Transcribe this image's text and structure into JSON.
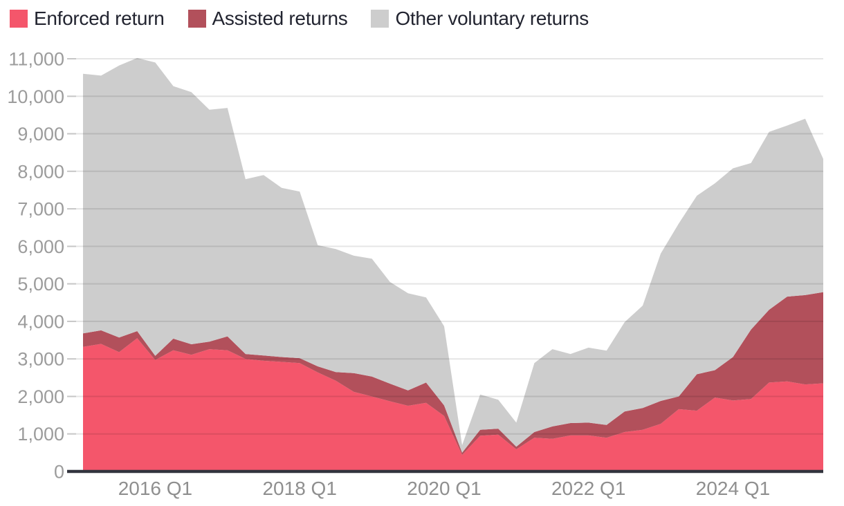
{
  "legend": {
    "items": [
      "Enforced return",
      "Assisted returns",
      "Other voluntary returns"
    ]
  },
  "colors": {
    "enforced": "#F4566B",
    "assisted": "#B2505B",
    "other": "#CDCDCD",
    "axis_line": "#32343E",
    "gridline": "#E6E6E6",
    "tick_stub": "#C6C6C6",
    "y_label": "#9C9C9C",
    "x_label": "#8F8F8F",
    "legend_text": "#222430",
    "background": "#FFFFFF"
  },
  "chart_data": {
    "type": "area",
    "stacked": true,
    "title": "",
    "xlabel": "",
    "ylabel": "",
    "grid": "horizontal",
    "legend_position": "top-left",
    "ylim": [
      0,
      11000
    ],
    "y_ticks": [
      0,
      1000,
      2000,
      3000,
      4000,
      5000,
      6000,
      7000,
      8000,
      9000,
      10000,
      11000
    ],
    "y_tick_labels": [
      "0",
      "1,000",
      "2,000",
      "3,000",
      "4,000",
      "5,000",
      "6,000",
      "7,000",
      "8,000",
      "9,000",
      "10,000",
      "11,000"
    ],
    "x_tick_labels": [
      "2016 Q1",
      "2018 Q1",
      "2020 Q1",
      "2022 Q1",
      "2024 Q1"
    ],
    "x_tick_indices": [
      4,
      12,
      20,
      28,
      36
    ],
    "categories": [
      "2015 Q1",
      "2015 Q2",
      "2015 Q3",
      "2015 Q4",
      "2016 Q1",
      "2016 Q2",
      "2016 Q3",
      "2016 Q4",
      "2017 Q1",
      "2017 Q2",
      "2017 Q3",
      "2017 Q4",
      "2018 Q1",
      "2018 Q2",
      "2018 Q3",
      "2018 Q4",
      "2019 Q1",
      "2019 Q2",
      "2019 Q3",
      "2019 Q4",
      "2020 Q1",
      "2020 Q2",
      "2020 Q3",
      "2020 Q4",
      "2021 Q1",
      "2021 Q2",
      "2021 Q3",
      "2021 Q4",
      "2022 Q1",
      "2022 Q2",
      "2022 Q3",
      "2022 Q4",
      "2023 Q1",
      "2023 Q2",
      "2023 Q3",
      "2023 Q4",
      "2024 Q1",
      "2024 Q2",
      "2024 Q3",
      "2024 Q4",
      "2025 Q1",
      "2025 Q2"
    ],
    "series": [
      {
        "name": "Enforced return",
        "color": "#F4566B",
        "values": [
          3320,
          3400,
          3180,
          3550,
          2970,
          3230,
          3110,
          3260,
          3230,
          3000,
          2950,
          2920,
          2890,
          2640,
          2420,
          2120,
          2000,
          1870,
          1750,
          1830,
          1480,
          440,
          950,
          980,
          590,
          900,
          870,
          960,
          960,
          900,
          1050,
          1110,
          1270,
          1660,
          1620,
          1970,
          1890,
          1930,
          2370,
          2400,
          2320,
          2350
        ]
      },
      {
        "name": "Assisted returns",
        "color": "#B2505B",
        "values": [
          360,
          360,
          390,
          190,
          110,
          310,
          280,
          200,
          370,
          130,
          140,
          130,
          130,
          160,
          230,
          500,
          530,
          470,
          410,
          540,
          280,
          60,
          160,
          160,
          70,
          150,
          330,
          330,
          340,
          340,
          550,
          580,
          610,
          340,
          970,
          730,
          1160,
          1850,
          1940,
          2260,
          2380,
          2430
        ]
      },
      {
        "name": "Other voluntary returns",
        "color": "#CDCDCD",
        "values": [
          6920,
          6790,
          7250,
          7280,
          7820,
          6730,
          6720,
          6180,
          6090,
          4660,
          4810,
          4510,
          4440,
          3230,
          3280,
          3130,
          3140,
          2710,
          2590,
          2270,
          2110,
          200,
          940,
          770,
          640,
          1840,
          2060,
          1840,
          2000,
          1980,
          2380,
          2730,
          3930,
          4610,
          4760,
          4980,
          5030,
          4440,
          4740,
          4560,
          4700,
          3550
        ]
      }
    ]
  }
}
